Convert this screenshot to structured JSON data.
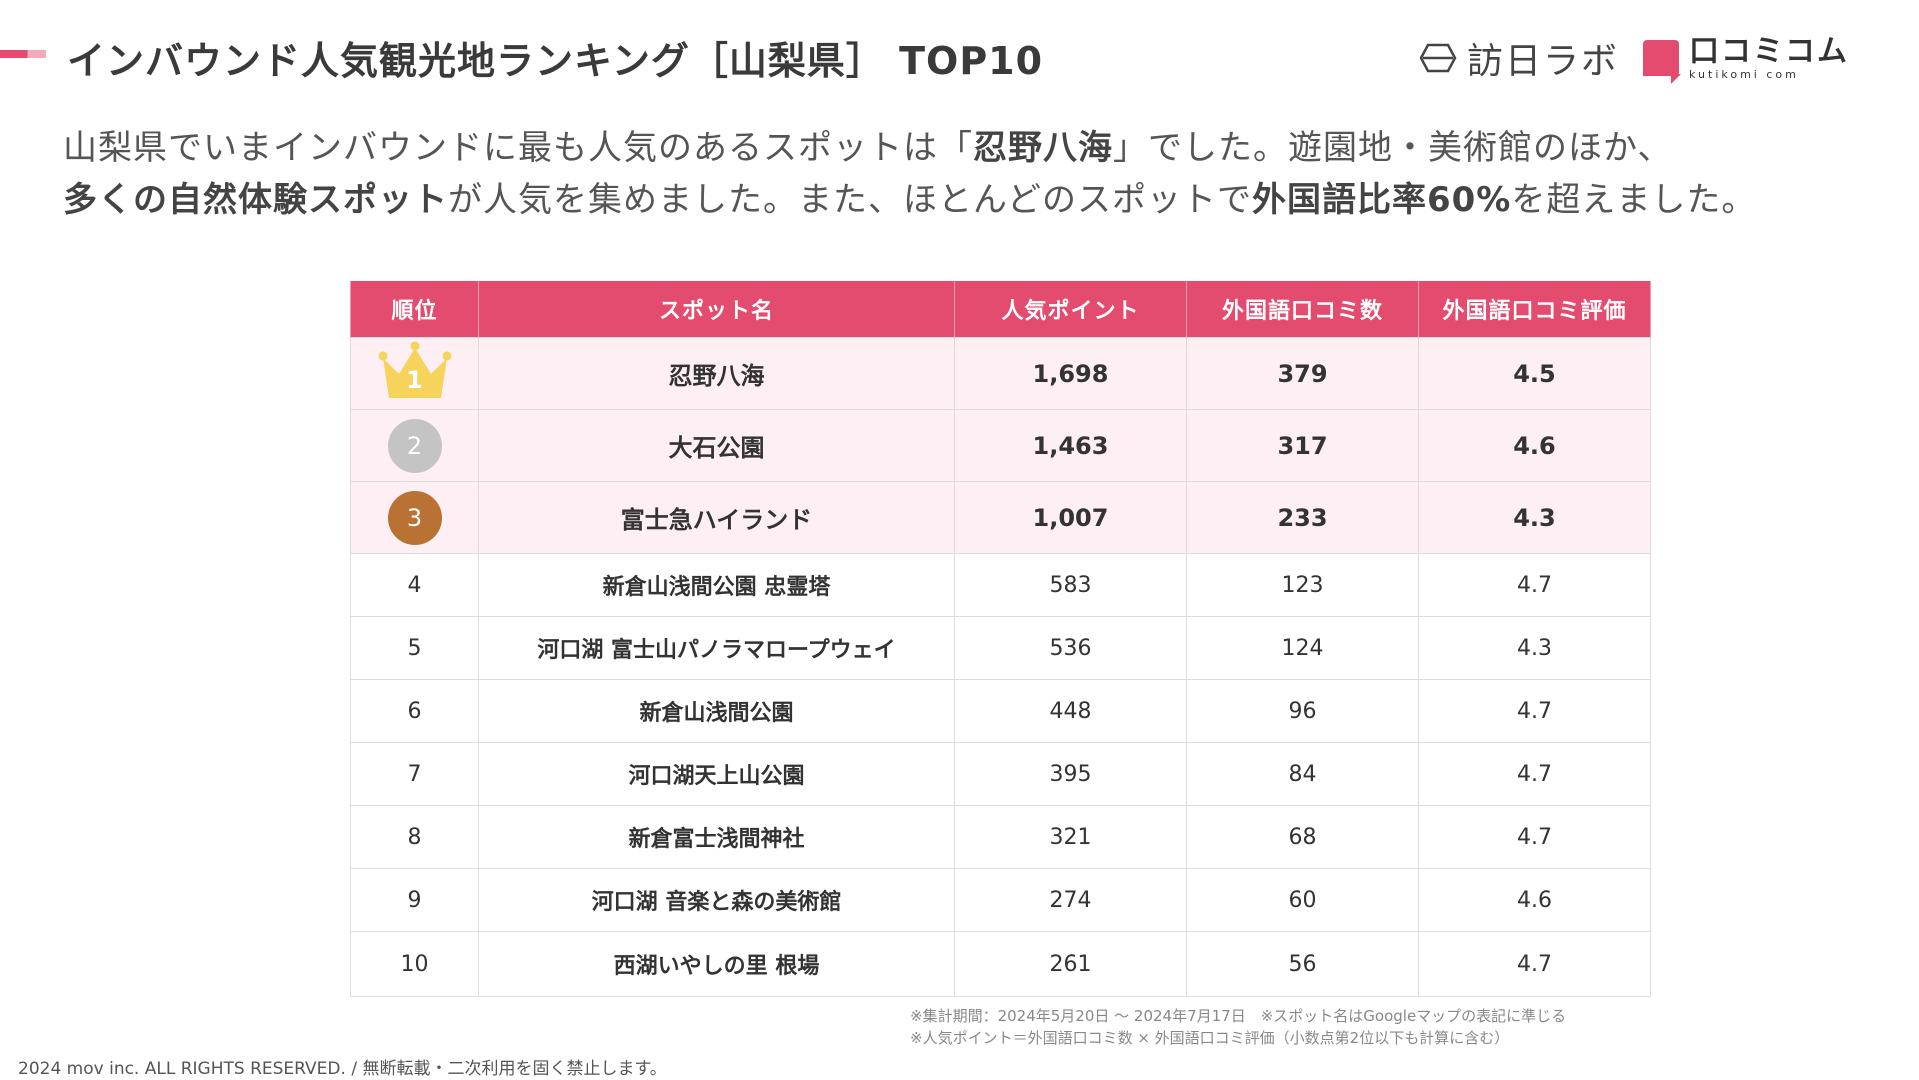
{
  "header": {
    "title": "インバウンド人気観光地ランキング［山梨県］ TOP10",
    "logo_houniti": "訪日ラボ",
    "logo_kuchikomi_main": "口コミコム",
    "logo_kuchikomi_sub": "kutikomi com"
  },
  "lead": {
    "line1_a": "山梨県でいまインバウンドに最も人気のあるスポットは「",
    "line1_bold": "忍野八海",
    "line1_b": "」でした。遊園地・美術館のほか、",
    "line2_bold1": "多くの自然体験スポット",
    "line2_a": "が人気を集めました。また、ほとんどのスポットで",
    "line2_bold2": "外国語比率60%",
    "line2_b": "を超えました。"
  },
  "table": {
    "headers": [
      "順位",
      "スポット名",
      "人気ポイント",
      "外国語口コミ数",
      "外国語口コミ評価"
    ],
    "rows": [
      {
        "rank": "1",
        "name": "忍野八海",
        "points": "1,698",
        "reviews": "379",
        "rating": "4.5"
      },
      {
        "rank": "2",
        "name": "大石公園",
        "points": "1,463",
        "reviews": "317",
        "rating": "4.6"
      },
      {
        "rank": "3",
        "name": "富士急ハイランド",
        "points": "1,007",
        "reviews": "233",
        "rating": "4.3"
      },
      {
        "rank": "4",
        "name": "新倉山浅間公園 忠霊塔",
        "points": "583",
        "reviews": "123",
        "rating": "4.7"
      },
      {
        "rank": "5",
        "name": "河口湖 富士山パノラマロープウェイ",
        "points": "536",
        "reviews": "124",
        "rating": "4.3"
      },
      {
        "rank": "6",
        "name": "新倉山浅間公園",
        "points": "448",
        "reviews": "96",
        "rating": "4.7"
      },
      {
        "rank": "7",
        "name": "河口湖天上山公園",
        "points": "395",
        "reviews": "84",
        "rating": "4.7"
      },
      {
        "rank": "8",
        "name": "新倉富士浅間神社",
        "points": "321",
        "reviews": "68",
        "rating": "4.7"
      },
      {
        "rank": "9",
        "name": "河口湖 音楽と森の美術館",
        "points": "274",
        "reviews": "60",
        "rating": "4.6"
      },
      {
        "rank": "10",
        "name": "西湖いやしの里 根場",
        "points": "261",
        "reviews": "56",
        "rating": "4.7"
      }
    ]
  },
  "footnotes": {
    "line1": "※集計期間：2024年5月20日 〜 2024年7月17日　※スポット名はGoogleマップの表記に準じる",
    "line2": "※人気ポイント＝外国語口コミ数 × 外国語口コミ評価（小数点第2位以下も計算に含む）"
  },
  "copyright": "2024 mov inc. ALL RIGHTS RESERVED. / 無断転載・二次利用を固く禁止します。",
  "colors": {
    "accent": "#e34c6e",
    "top_row_bg": "#fdeff3",
    "gold": "#f6d35a",
    "silver": "#c4c4c4",
    "bronze": "#b97134"
  }
}
